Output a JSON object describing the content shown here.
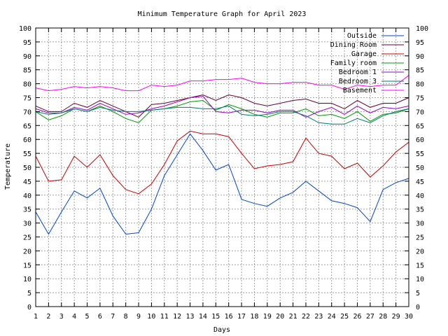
{
  "chart_data": {
    "type": "line",
    "title": "Minimum Temperature Graph for April 2023",
    "xlabel": "Days",
    "ylabel": "Temperature",
    "xlim": [
      1,
      30
    ],
    "ylim": [
      0,
      100
    ],
    "x_ticks": [
      1,
      2,
      3,
      4,
      5,
      6,
      7,
      8,
      9,
      10,
      11,
      12,
      13,
      14,
      15,
      16,
      17,
      18,
      19,
      20,
      21,
      22,
      23,
      24,
      25,
      26,
      27,
      28,
      29,
      30
    ],
    "y_ticks": [
      0,
      5,
      10,
      15,
      20,
      25,
      30,
      35,
      40,
      45,
      50,
      55,
      60,
      65,
      70,
      75,
      80,
      85,
      90,
      95,
      100
    ],
    "grid": true,
    "legend_position": "top-right",
    "x": [
      1,
      2,
      3,
      4,
      5,
      6,
      7,
      8,
      9,
      10,
      11,
      12,
      13,
      14,
      15,
      16,
      17,
      18,
      19,
      20,
      21,
      22,
      23,
      24,
      25,
      26,
      27,
      28,
      29,
      30
    ],
    "series": [
      {
        "name": "Outside",
        "color": "#0044cc",
        "values": [
          34,
          26,
          34,
          41.5,
          39,
          42.5,
          32.5,
          26,
          26.5,
          35,
          47,
          54.5,
          62,
          56,
          49,
          51,
          38.5,
          37,
          36,
          39,
          41,
          45,
          41.5,
          38,
          37,
          35.5,
          30.5,
          42,
          44.5,
          46
        ]
      },
      {
        "name": "Dining Room",
        "color": "#660033",
        "values": [
          72,
          70,
          70,
          73,
          71.5,
          74,
          72,
          70,
          68,
          72.5,
          73,
          74,
          75,
          76,
          74,
          76,
          75,
          73,
          72,
          73,
          74,
          74.5,
          73,
          73,
          71,
          74,
          71.5,
          73,
          73,
          75
        ]
      },
      {
        "name": "Garage",
        "color": "#cc0000",
        "values": [
          54,
          45,
          45.5,
          54,
          50,
          54.5,
          47,
          42,
          40.5,
          44,
          51,
          59.5,
          63,
          62,
          62,
          61,
          55,
          49.5,
          50.5,
          51,
          52,
          60.5,
          55,
          54,
          49.5,
          51.5,
          46.5,
          50.5,
          55.5,
          59
        ]
      },
      {
        "name": "Family room",
        "color": "#009900",
        "values": [
          70,
          67,
          68.5,
          71,
          70,
          72,
          70,
          67.5,
          66,
          70.5,
          71,
          72,
          73.5,
          74,
          70.5,
          72.5,
          71,
          69,
          68,
          69.5,
          69.5,
          71,
          68.5,
          69,
          67.5,
          70,
          66.5,
          69,
          69.5,
          71
        ]
      },
      {
        "name": "Bedroom 1",
        "color": "#9900cc",
        "values": [
          71,
          69.5,
          69.5,
          71.5,
          70.5,
          73,
          71,
          69,
          69.5,
          71,
          72,
          73.5,
          75,
          75.5,
          70,
          69.5,
          70.5,
          70.5,
          69.5,
          70.5,
          70.5,
          68,
          70,
          71.5,
          69,
          72,
          69.5,
          71.5,
          71,
          72
        ]
      },
      {
        "name": "Bedroom 3",
        "color": "#007777",
        "values": [
          70,
          69,
          69.5,
          71,
          70,
          71.5,
          70.5,
          70,
          70,
          70.5,
          71,
          71.5,
          71.5,
          71,
          71,
          72,
          69,
          68.5,
          69,
          70,
          70,
          68.5,
          66,
          65.5,
          65.5,
          67.5,
          66,
          68.5,
          70,
          71
        ]
      },
      {
        "name": "Basement",
        "color": "#ff00ff",
        "values": [
          78.5,
          77.5,
          78,
          79,
          78.5,
          79,
          78.5,
          77.5,
          77.5,
          79.5,
          79,
          79.5,
          81,
          81,
          81.5,
          81.5,
          82,
          80.5,
          80,
          80,
          80.5,
          80.5,
          79.5,
          79.5,
          78,
          79.5,
          79,
          79.5,
          79.5,
          83
        ]
      }
    ]
  }
}
